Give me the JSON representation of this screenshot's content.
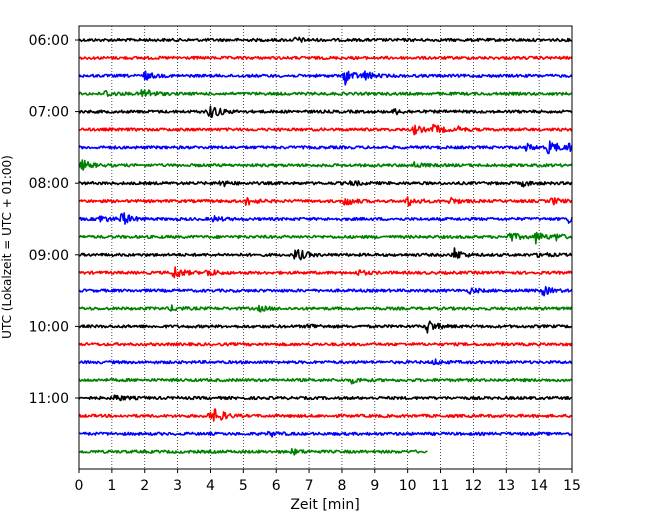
{
  "chart_data": {
    "type": "line",
    "title": "",
    "xlabel": "Zeit  [min]",
    "ylabel": "UTC (Lokalzeit = UTC + 01:00)",
    "xlim": [
      0,
      15
    ],
    "x_ticks": [
      "0",
      "1",
      "2",
      "3",
      "4",
      "5",
      "6",
      "7",
      "8",
      "9",
      "10",
      "11",
      "12",
      "13",
      "14",
      "15"
    ],
    "y_ticks": [
      "06:00",
      "07:00",
      "08:00",
      "09:00",
      "10:00",
      "11:00"
    ],
    "grid": "vertical dotted",
    "trace_colors": [
      "#000000",
      "#ff0000",
      "#0000ff",
      "#008000"
    ],
    "traces": [
      {
        "start": "06:00",
        "x_end": 15,
        "events": [
          [
            6.6,
            0.3
          ]
        ]
      },
      {
        "start": "06:15",
        "x_end": 15,
        "events": []
      },
      {
        "start": "06:30",
        "x_end": 15,
        "events": [
          [
            2.0,
            0.5
          ],
          [
            8.1,
            1.0
          ],
          [
            8.7,
            0.5
          ]
        ]
      },
      {
        "start": "06:45",
        "x_end": 15,
        "events": [
          [
            0.8,
            0.4
          ],
          [
            1.95,
            0.85
          ]
        ]
      },
      {
        "start": "07:00",
        "x_end": 15,
        "events": [
          [
            3.9,
            0.5
          ],
          [
            4.05,
            0.6
          ],
          [
            9.6,
            0.3
          ]
        ]
      },
      {
        "start": "07:15",
        "x_end": 15,
        "events": [
          [
            10.2,
            0.5
          ],
          [
            10.8,
            0.6
          ],
          [
            11.5,
            0.3
          ]
        ]
      },
      {
        "start": "07:30",
        "x_end": 15,
        "events": [
          [
            13.6,
            0.4
          ],
          [
            14.3,
            1.0
          ],
          [
            14.9,
            0.5
          ]
        ]
      },
      {
        "start": "07:45",
        "x_end": 15,
        "events": [
          [
            0.1,
            0.6
          ],
          [
            10.2,
            0.3
          ]
        ]
      },
      {
        "start": "08:00",
        "x_end": 15,
        "events": [
          [
            4.3,
            0.4
          ],
          [
            8.3,
            0.3
          ],
          [
            13.5,
            0.3
          ]
        ]
      },
      {
        "start": "08:15",
        "x_end": 15,
        "events": [
          [
            5.1,
            0.5
          ],
          [
            8.1,
            0.6
          ],
          [
            10.0,
            0.6
          ],
          [
            11.3,
            0.4
          ],
          [
            14.4,
            0.4
          ]
        ]
      },
      {
        "start": "08:30",
        "x_end": 15,
        "events": [
          [
            0.6,
            0.5
          ],
          [
            1.3,
            0.9
          ],
          [
            4.1,
            0.3
          ],
          [
            14.9,
            0.4
          ]
        ]
      },
      {
        "start": "08:45",
        "x_end": 15,
        "events": [
          [
            13.1,
            0.6
          ],
          [
            13.9,
            0.7
          ],
          [
            14.5,
            0.4
          ]
        ]
      },
      {
        "start": "09:00",
        "x_end": 15,
        "events": [
          [
            6.6,
            0.9
          ],
          [
            11.4,
            0.8
          ],
          [
            14.0,
            0.3
          ]
        ]
      },
      {
        "start": "09:15",
        "x_end": 15,
        "events": [
          [
            2.9,
            0.8
          ],
          [
            3.9,
            0.5
          ],
          [
            8.5,
            0.3
          ]
        ]
      },
      {
        "start": "09:30",
        "x_end": 15,
        "events": [
          [
            14.1,
            0.6
          ],
          [
            11.9,
            0.3
          ]
        ]
      },
      {
        "start": "09:45",
        "x_end": 15,
        "events": [
          [
            2.8,
            0.3
          ],
          [
            5.5,
            0.3
          ]
        ]
      },
      {
        "start": "10:00",
        "x_end": 15,
        "events": [
          [
            10.6,
            0.85
          ],
          [
            7.0,
            0.3
          ]
        ]
      },
      {
        "start": "10:15",
        "x_end": 15,
        "events": []
      },
      {
        "start": "10:30",
        "x_end": 15,
        "events": [
          [
            10.8,
            0.3
          ]
        ]
      },
      {
        "start": "10:45",
        "x_end": 15,
        "events": [
          [
            8.3,
            0.3
          ]
        ]
      },
      {
        "start": "11:00",
        "x_end": 15,
        "events": [
          [
            1.1,
            0.4
          ]
        ]
      },
      {
        "start": "11:15",
        "x_end": 15,
        "events": [
          [
            4.15,
            0.9
          ],
          [
            3.9,
            0.4
          ]
        ]
      },
      {
        "start": "11:30",
        "x_end": 15,
        "events": [
          [
            5.8,
            0.3
          ]
        ]
      },
      {
        "start": "11:45",
        "x_end": 10.6,
        "events": [
          [
            6.5,
            0.3
          ]
        ]
      }
    ]
  }
}
